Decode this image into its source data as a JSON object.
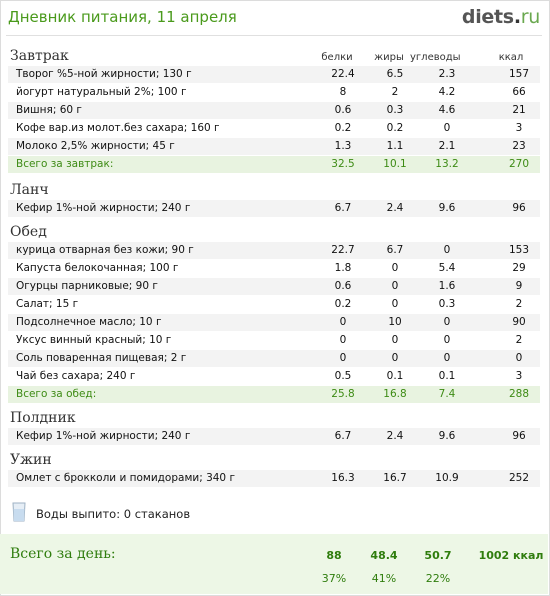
{
  "title": "Дневник питания, 11 апреля",
  "logo": {
    "main": "diets",
    "dot": ".",
    "tld": "ru"
  },
  "columns": [
    "белки",
    "жиры",
    "углеводы",
    "ккал"
  ],
  "meals": [
    {
      "name": "Завтрак",
      "items": [
        {
          "name": "Творог %5-ной жирности; 130 г",
          "protein": "22.4",
          "fat": "6.5",
          "carbs": "2.3",
          "kcal": "157"
        },
        {
          "name": "йогурт натуральный 2%; 100 г",
          "protein": "8",
          "fat": "2",
          "carbs": "4.2",
          "kcal": "66"
        },
        {
          "name": "Вишня; 60 г",
          "protein": "0.6",
          "fat": "0.3",
          "carbs": "4.6",
          "kcal": "21"
        },
        {
          "name": "Кофе вар.из молот.без сахара; 160 г",
          "protein": "0.2",
          "fat": "0.2",
          "carbs": "0",
          "kcal": "3"
        },
        {
          "name": "Молоко 2,5% жирности; 45 г",
          "protein": "1.3",
          "fat": "1.1",
          "carbs": "2.1",
          "kcal": "23"
        }
      ],
      "total": {
        "name": "Всего за завтрак:",
        "protein": "32.5",
        "fat": "10.1",
        "carbs": "13.2",
        "kcal": "270"
      }
    },
    {
      "name": "Ланч",
      "items": [
        {
          "name": "Кефир 1%-ной жирности; 240 г",
          "protein": "6.7",
          "fat": "2.4",
          "carbs": "9.6",
          "kcal": "96"
        }
      ]
    },
    {
      "name": "Обед",
      "items": [
        {
          "name": "курица отварная без кожи; 90 г",
          "protein": "22.7",
          "fat": "6.7",
          "carbs": "0",
          "kcal": "153"
        },
        {
          "name": "Капуста белокочанная; 100 г",
          "protein": "1.8",
          "fat": "0",
          "carbs": "5.4",
          "kcal": "29"
        },
        {
          "name": "Огурцы парниковые; 90 г",
          "protein": "0.6",
          "fat": "0",
          "carbs": "1.6",
          "kcal": "9"
        },
        {
          "name": "Салат; 15 г",
          "protein": "0.2",
          "fat": "0",
          "carbs": "0.3",
          "kcal": "2"
        },
        {
          "name": "Подсолнечное масло; 10 г",
          "protein": "0",
          "fat": "10",
          "carbs": "0",
          "kcal": "90"
        },
        {
          "name": "Уксус винный красный; 10 г",
          "protein": "0",
          "fat": "0",
          "carbs": "0",
          "kcal": "2"
        },
        {
          "name": "Соль поваренная пищевая; 2 г",
          "protein": "0",
          "fat": "0",
          "carbs": "0",
          "kcal": "0"
        },
        {
          "name": "Чай без сахара; 240 г",
          "protein": "0.5",
          "fat": "0.1",
          "carbs": "0.1",
          "kcal": "3"
        }
      ],
      "total": {
        "name": "Всего за обед:",
        "protein": "25.8",
        "fat": "16.8",
        "carbs": "7.4",
        "kcal": "288"
      }
    },
    {
      "name": "Полдник",
      "items": [
        {
          "name": "Кефир 1%-ной жирности; 240 г",
          "protein": "6.7",
          "fat": "2.4",
          "carbs": "9.6",
          "kcal": "96"
        }
      ]
    },
    {
      "name": "Ужин",
      "items": [
        {
          "name": "Омлет с брокколи и помидорами; 340 г",
          "protein": "16.3",
          "fat": "16.7",
          "carbs": "10.9",
          "kcal": "252"
        }
      ]
    }
  ],
  "water": {
    "label": "Воды выпито:",
    "value": "0 стаканов",
    "icon": "water-glass-icon"
  },
  "day_total": {
    "label": "Всего за день:",
    "protein": "88",
    "fat": "48.4",
    "carbs": "50.7",
    "kcal": "1002 ккал",
    "protein_pct": "37%",
    "fat_pct": "41%",
    "carbs_pct": "22%"
  },
  "colors": {
    "accent": "#4a9a1c",
    "total_bg": "#e8f3e0",
    "day_bg": "#edf7e6",
    "row_alt": "#f3f3f3"
  }
}
